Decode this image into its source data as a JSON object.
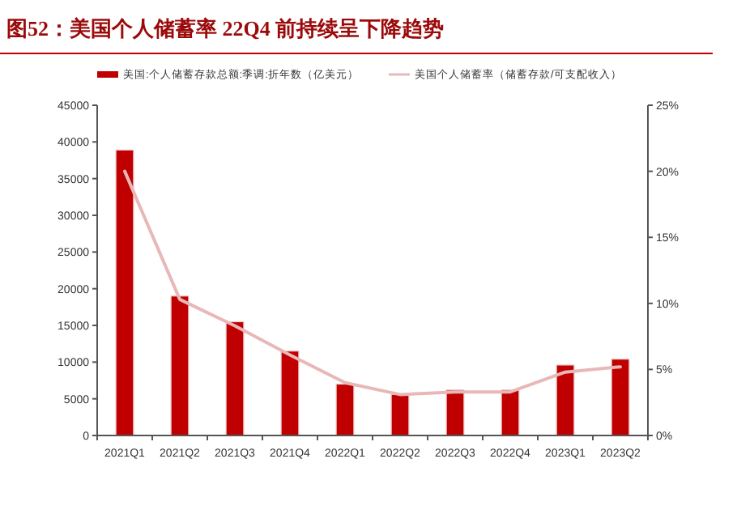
{
  "chart_data": {
    "type": "bar",
    "title": "图52：美国个人储蓄率 22Q4 前持续呈下降趋势",
    "categories": [
      "2021Q1",
      "2021Q2",
      "2021Q3",
      "2021Q4",
      "2022Q1",
      "2022Q2",
      "2022Q3",
      "2022Q4",
      "2023Q1",
      "2023Q2"
    ],
    "series": [
      {
        "name": "美国:个人储蓄存款总额:季调:折年数（亿美元）",
        "color": "#c00000",
        "values": [
          38900,
          19000,
          15500,
          11500,
          7000,
          5600,
          6200,
          6200,
          9600,
          10400
        ]
      },
      {
        "name": "美国个人储蓄率（储蓄存款/可支配收入）",
        "type": "line",
        "axis": "y2",
        "color": "#e8b8b8",
        "values": [
          20.0,
          10.3,
          8.3,
          6.1,
          4.0,
          3.1,
          3.3,
          3.3,
          4.8,
          5.2
        ]
      }
    ],
    "ylim": [
      0,
      45000
    ],
    "yticks": [
      0,
      5000,
      10000,
      15000,
      20000,
      25000,
      30000,
      35000,
      40000,
      45000
    ],
    "y2lim": [
      0,
      25
    ],
    "y2ticks": [
      {
        "value": 0,
        "label": "0%"
      },
      {
        "value": 5,
        "label": "5%"
      },
      {
        "value": 10,
        "label": "10%"
      },
      {
        "value": 15,
        "label": "15%"
      },
      {
        "value": 20,
        "label": "20%"
      },
      {
        "value": 25,
        "label": "25%"
      }
    ],
    "legend": "top",
    "grid": false
  }
}
